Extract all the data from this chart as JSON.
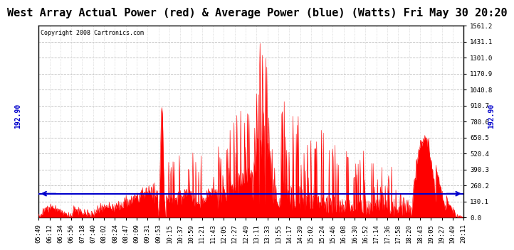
{
  "title": "West Array Actual Power (red) & Average Power (blue) (Watts) Fri May 30 20:20",
  "copyright": "Copyright 2008 Cartronics.com",
  "avg_line_value": 192.9,
  "avg_line_label": "192.90",
  "y_max": 1561.2,
  "y_min": 0.0,
  "y_ticks": [
    0.0,
    130.1,
    260.2,
    390.3,
    520.4,
    650.5,
    780.6,
    910.7,
    1040.8,
    1170.9,
    1301.0,
    1431.1,
    1561.2
  ],
  "x_labels": [
    "05:49",
    "06:12",
    "06:34",
    "06:56",
    "07:18",
    "07:40",
    "08:02",
    "08:24",
    "08:47",
    "09:09",
    "09:31",
    "09:53",
    "10:15",
    "10:37",
    "10:59",
    "11:21",
    "11:43",
    "12:05",
    "12:27",
    "12:49",
    "13:11",
    "13:33",
    "13:55",
    "14:17",
    "14:39",
    "15:02",
    "15:24",
    "15:46",
    "16:08",
    "16:30",
    "16:52",
    "17:14",
    "17:36",
    "17:58",
    "18:20",
    "18:43",
    "19:05",
    "19:27",
    "19:49",
    "20:11"
  ],
  "title_fontsize": 11,
  "tick_fontsize": 6.5,
  "copyright_fontsize": 6,
  "bg_color": "#ffffff",
  "plot_bg_color": "#ffffff",
  "red_color": "#ff0000",
  "blue_color": "#0000cc",
  "grid_color": "#aaaaaa"
}
